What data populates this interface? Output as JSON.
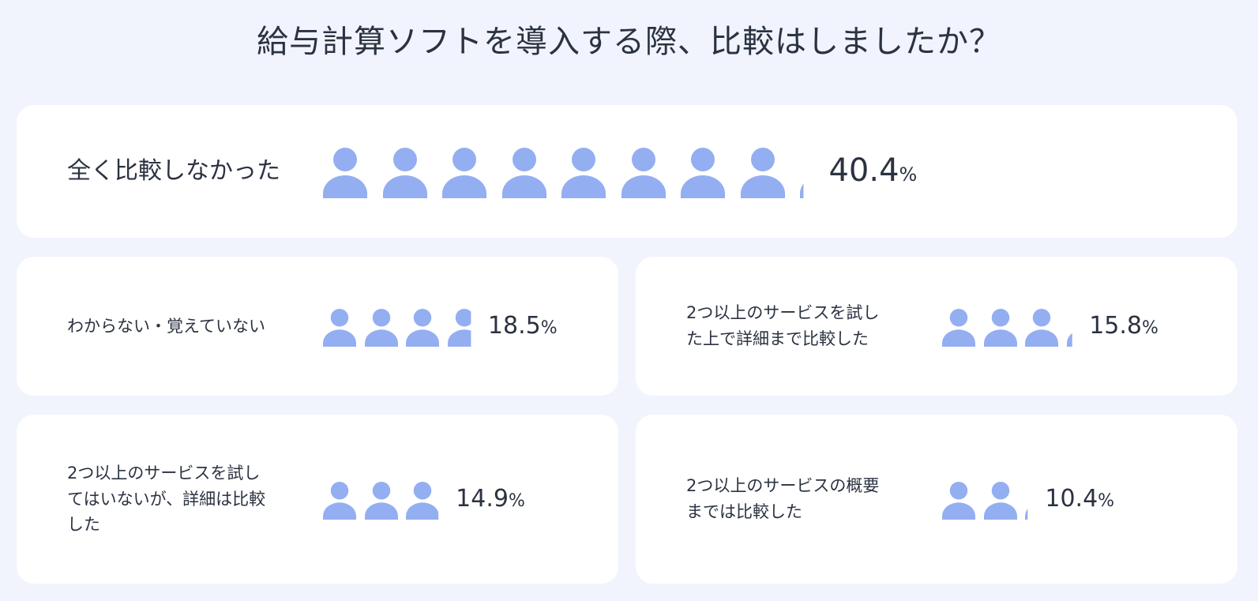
{
  "title": "給与計算ソフトを導入する際、比較はしましたか？",
  "colors": {
    "icon": "#94aef2",
    "background": "#f1f4fd",
    "card": "#ffffff",
    "text": "#2b3241"
  },
  "icon_name": "person-icon",
  "icon_unit_percent": 5,
  "chart_data": {
    "type": "pictograph",
    "title": "給与計算ソフトを導入する際、比較はしましたか？",
    "unit": "%",
    "items": [
      {
        "label": "全く比較しなかった",
        "value": 40.4
      },
      {
        "label": "わからない・覚えていない",
        "value": 18.5
      },
      {
        "label": "2つ以上のサービスを試した上で詳細まで比較した",
        "value": 15.8
      },
      {
        "label": "2つ以上のサービスを試してはいないが、詳細は比較した",
        "value": 14.9
      },
      {
        "label": "2つ以上のサービスの概要までは比較した",
        "value": 10.4
      }
    ]
  },
  "cards": [
    {
      "label_lines": [
        "全く比較しなかった"
      ],
      "value_text": "40.4",
      "unit": "%"
    },
    {
      "label_lines": [
        "わからない・覚えていない"
      ],
      "value_text": "18.5",
      "unit": "%"
    },
    {
      "label_lines": [
        "2つ以上のサービスを試し",
        "た上で詳細まで比較した"
      ],
      "value_text": "15.8",
      "unit": "%"
    },
    {
      "label_lines": [
        "2つ以上のサービスを試し",
        "てはいないが、詳細は比較",
        "した"
      ],
      "value_text": "14.9",
      "unit": "%"
    },
    {
      "label_lines": [
        "2つ以上のサービスの概要",
        "までは比較した"
      ],
      "value_text": "10.4",
      "unit": "%"
    }
  ]
}
